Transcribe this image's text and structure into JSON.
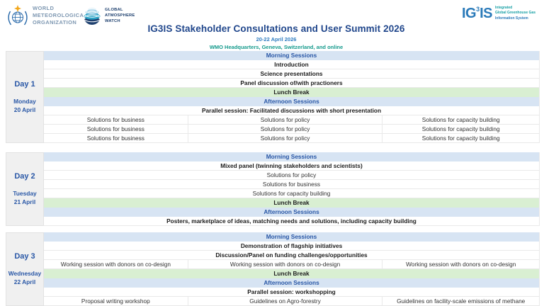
{
  "header": {
    "wmo_lines": [
      "WORLD",
      "METEOROLOGICAL",
      "ORGANIZATION"
    ],
    "gaw_lines": [
      "GLOBAL",
      "ATMOSPHERE",
      "WATCH"
    ],
    "ig3is": {
      "part1": "IG",
      "sup": "3",
      "part2": "IS",
      "tagline": [
        "Integrated",
        "Global Greenhouse Gas",
        "Information System"
      ]
    },
    "title": "IG3IS Stakeholder Consultations and User Summit 2026",
    "dates": "20-22 April 2026",
    "location": "WMO Headquarters, Geneva, Switzerland, and online"
  },
  "colors": {
    "session_row_bg": "#d7e4f3",
    "lunch_row_bg": "#d9efd2",
    "day_column_bg": "#f0f0f0",
    "accent_blue_text": "#2957a6",
    "title_blue": "#21478c",
    "dates_blue": "#2e7cc0",
    "location_teal": "#149a8c"
  },
  "days": [
    {
      "label": "Day 1",
      "weekday": "Monday",
      "date": "20 April",
      "rows": [
        {
          "type": "session",
          "text": "Morning Sessions"
        },
        {
          "type": "bold",
          "text": "Introduction"
        },
        {
          "type": "bold",
          "text": "Science presentations"
        },
        {
          "type": "bold",
          "text": "Panel discussion of/with practioners"
        },
        {
          "type": "lunch",
          "text": "Lunch Break"
        },
        {
          "type": "session",
          "text": "Afternoon Sessions"
        },
        {
          "type": "bold",
          "text": "Parallel session: Facilitated discussions with short presentation"
        },
        {
          "type": "cols",
          "cells": [
            "Solutions for business",
            "Solutions for policy",
            "Solutions for capacity building"
          ]
        },
        {
          "type": "cols",
          "cells": [
            "Solutions for business",
            "Solutions for policy",
            "Solutions for capacity building"
          ]
        },
        {
          "type": "cols",
          "cells": [
            "Solutions for business",
            "Solutions for policy",
            "Solutions for capacity building"
          ]
        }
      ]
    },
    {
      "label": "Day 2",
      "weekday": "Tuesday",
      "date": "21 April",
      "rows": [
        {
          "type": "session",
          "text": "Morning Sessions"
        },
        {
          "type": "bold",
          "text": "Mixed panel (twinning stakeholders and scientists)"
        },
        {
          "type": "plain",
          "text": "Solutions for policy"
        },
        {
          "type": "plain",
          "text": "Solutions for business"
        },
        {
          "type": "plain",
          "text": "Solutions for capacity building"
        },
        {
          "type": "lunch",
          "text": "Lunch Break"
        },
        {
          "type": "session",
          "text": "Afternoon Sessions"
        },
        {
          "type": "bold",
          "text": "Posters, marketplace of ideas, matching needs and solutions, including capacity building"
        }
      ]
    },
    {
      "label": "Day 3",
      "weekday": "Wednesday",
      "date": "22 April",
      "rows": [
        {
          "type": "session",
          "text": "Morning Sessions"
        },
        {
          "type": "bold",
          "text": "Demonstration of flagship initiatives"
        },
        {
          "type": "bold",
          "text": "Discussion/Panel on funding challenges/opportunities"
        },
        {
          "type": "cols",
          "cells": [
            "Working session with donors on co-design",
            "Working session with donors on co-design",
            "Working session with donors on co-design"
          ]
        },
        {
          "type": "lunch",
          "text": "Lunch Break"
        },
        {
          "type": "session",
          "text": "Afternoon Sessions"
        },
        {
          "type": "bold",
          "text": "Parallel session: workshopping"
        },
        {
          "type": "cols",
          "cells": [
            "Proposal writing workshop",
            "Guidelines on Agro-forestry",
            "Guidelines on facility-scale emissions of methane"
          ]
        }
      ]
    }
  ]
}
